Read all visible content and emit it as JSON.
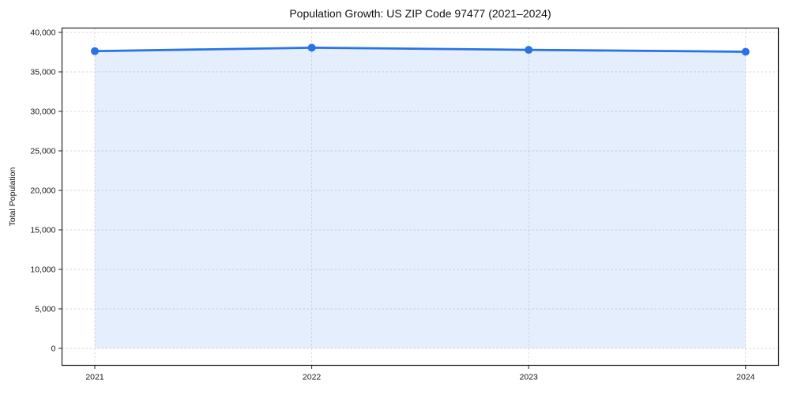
{
  "chart_data": {
    "type": "line",
    "title": "Population Growth: US ZIP Code 97477 (2021–2024)",
    "xlabel": "",
    "ylabel": "Total Population",
    "x": [
      2021,
      2022,
      2023,
      2024
    ],
    "x_tick_labels": [
      "2021",
      "2022",
      "2023",
      "2024"
    ],
    "series": [
      {
        "name": "Total Population",
        "values": [
          37630,
          38060,
          37790,
          37550
        ]
      }
    ],
    "y_ticks": [
      0,
      5000,
      10000,
      15000,
      20000,
      25000,
      30000,
      35000,
      40000
    ],
    "y_tick_labels": [
      "0",
      "5,000",
      "10,000",
      "15,000",
      "20,000",
      "25,000",
      "30,000",
      "35,000",
      "40,000"
    ],
    "ylim": [
      -2100,
      40700
    ],
    "grid": true,
    "grid_style": "dashed",
    "legend": "none",
    "area_fill": true,
    "area_fill_opacity": 0.12,
    "marker": "circle",
    "colors": {
      "line": "#2873e6",
      "marker": "#2873e6",
      "area": "#e7effc",
      "grid": "#d9d9d9",
      "spine": "#262626",
      "text": "#191919",
      "background": "#ffffff"
    }
  }
}
